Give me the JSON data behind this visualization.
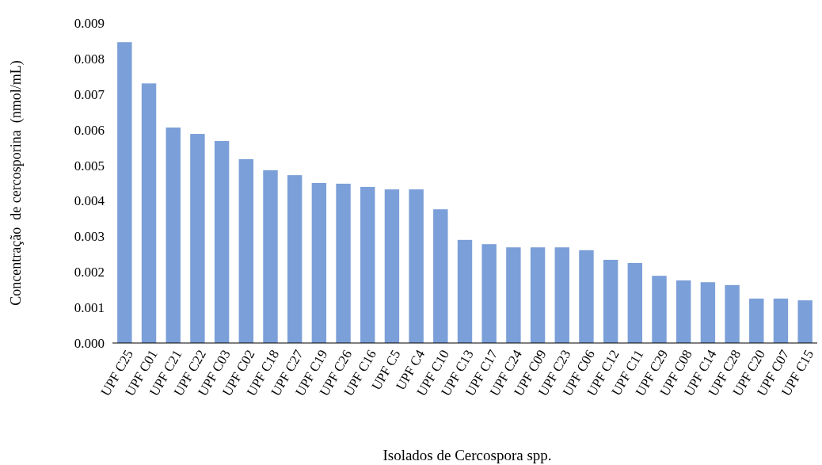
{
  "chart_data": {
    "type": "bar",
    "xlabel": "Isolados de Cercospora spp.",
    "ylabel": "Concentração  de cercosporina  (nmol/mL)",
    "categories": [
      "UPF C25",
      "UPF C01",
      "UPF C21",
      "UPF C22",
      "UPF C03",
      "UPF C02",
      "UPF C18",
      "UPF C27",
      "UPF C19",
      "UPF C26",
      "UPF C16",
      "UPF C5",
      "UPF C4",
      "UPF C10",
      "UPF C13",
      "UPF C17",
      "UPF C24",
      "UPF C09",
      "UPF C23",
      "UPF C06",
      "UPF C12",
      "UPF C11",
      "UPF C29",
      "UPF C08",
      "UPF C14",
      "UPF C28",
      "UPF C20",
      "UPF C07",
      "UPF C15"
    ],
    "values": [
      0.00846,
      0.0073,
      0.00606,
      0.00588,
      0.00568,
      0.00517,
      0.00486,
      0.00472,
      0.0045,
      0.00448,
      0.00439,
      0.00432,
      0.00432,
      0.00376,
      0.0029,
      0.00278,
      0.00269,
      0.00269,
      0.00269,
      0.00261,
      0.00234,
      0.00225,
      0.00189,
      0.00176,
      0.00171,
      0.00163,
      0.00125,
      0.00125,
      0.0012
    ],
    "color": "#7b9fd8",
    "ylim": [
      0,
      0.009
    ],
    "yticks": [
      {
        "value": 0,
        "label": "0.000"
      },
      {
        "value": 0.001,
        "label": "0.001"
      },
      {
        "value": 0.002,
        "label": "0.002"
      },
      {
        "value": 0.003,
        "label": "0.003"
      },
      {
        "value": 0.004,
        "label": "0.004"
      },
      {
        "value": 0.005,
        "label": "0.005"
      },
      {
        "value": 0.006,
        "label": "0.006"
      },
      {
        "value": 0.007,
        "label": "0.007"
      },
      {
        "value": 0.008,
        "label": "0.008"
      },
      {
        "value": 0.009,
        "label": "0.009"
      }
    ],
    "grid": false
  }
}
